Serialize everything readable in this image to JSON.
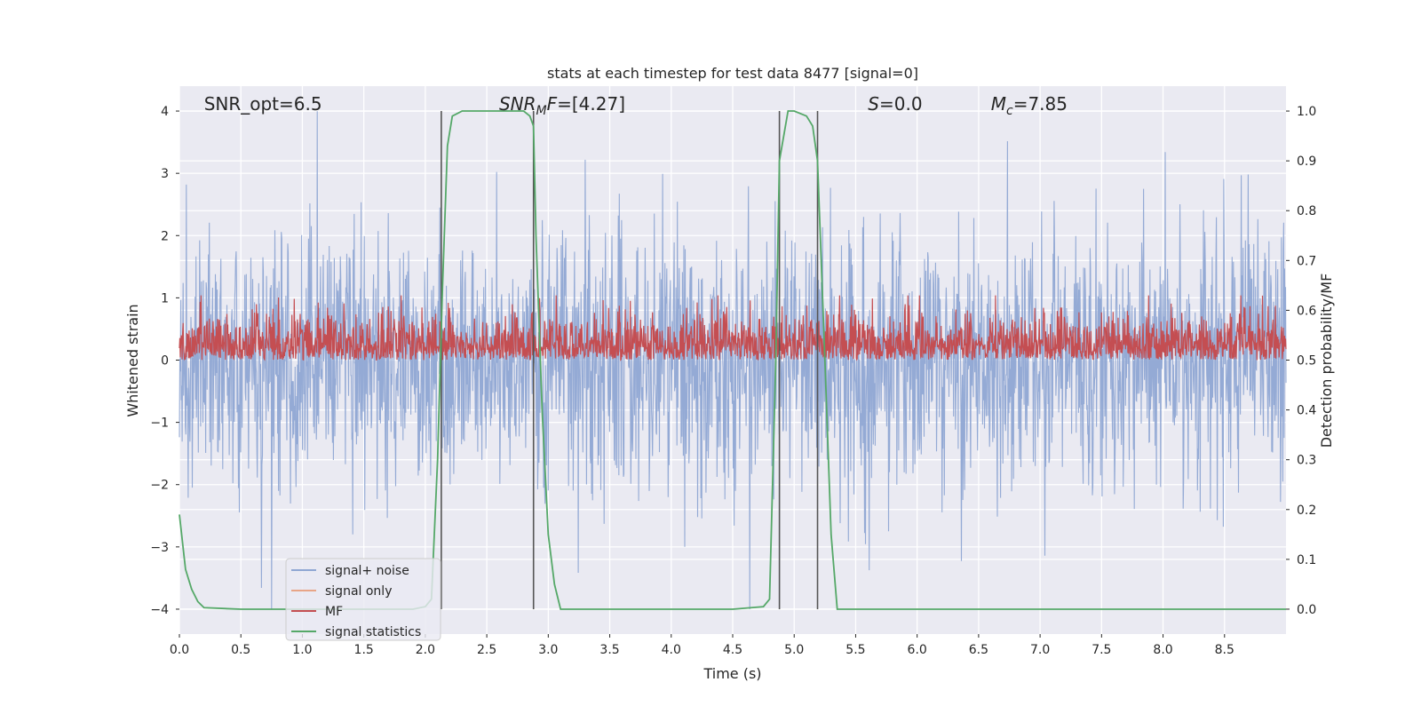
{
  "chart_data": {
    "type": "line",
    "title": "stats at each timestep for test data 8477 [signal=0]",
    "xlabel": "Time (s)",
    "ylabel_left": "Whitened strain",
    "ylabel_right": "Detection probability/MF",
    "xlim": [
      0.0,
      9.0
    ],
    "ylim_left": [
      -4.4,
      4.4
    ],
    "ylim_right": [
      -0.05,
      1.05
    ],
    "x_ticks": [
      "0.0",
      "0.5",
      "1.0",
      "1.5",
      "2.0",
      "2.5",
      "3.0",
      "3.5",
      "4.0",
      "4.5",
      "5.0",
      "5.5",
      "6.0",
      "6.5",
      "7.0",
      "7.5",
      "8.0",
      "8.5"
    ],
    "y_ticks_left": [
      "−4",
      "−3",
      "−2",
      "−1",
      "0",
      "1",
      "2",
      "3",
      "4"
    ],
    "y_ticks_right": [
      "0.0",
      "0.1",
      "0.2",
      "0.3",
      "0.4",
      "0.5",
      "0.6",
      "0.7",
      "0.8",
      "0.9",
      "1.0"
    ],
    "annotations": [
      {
        "text": "SNR_opt=6.5",
        "x": 0.2
      },
      {
        "text": "SNR_MF=[4.27]",
        "x": 2.6
      },
      {
        "text": "S=0.0",
        "x": 5.6
      },
      {
        "text": "M_c=7.85",
        "x": 6.6
      }
    ],
    "vlines": [
      2.13,
      2.88,
      4.88,
      5.19
    ],
    "legend": {
      "placement": "lower-left",
      "entries": [
        {
          "label": "signal+ noise",
          "color": "#8fa7d3"
        },
        {
          "label": "signal only",
          "color": "#e8a587"
        },
        {
          "label": "MF",
          "color": "#c44e52"
        },
        {
          "label": "signal statistics",
          "color": "#55a868"
        }
      ]
    },
    "series": [
      {
        "name": "signal+ noise",
        "axis": "left",
        "color": "#8fa7d3",
        "envelope": {
          "typical_abs": 2.0,
          "max": 4.0,
          "min": -4.0
        }
      },
      {
        "name": "MF",
        "axis": "right",
        "color": "#c44e52",
        "envelope": {
          "min": 0.5,
          "typical_max": 0.58,
          "max": 0.63
        }
      },
      {
        "name": "signal statistics",
        "axis": "right",
        "color": "#55a868",
        "x": [
          0.0,
          0.05,
          0.1,
          0.15,
          0.2,
          0.5,
          1.0,
          1.5,
          1.9,
          2.0,
          2.05,
          2.1,
          2.14,
          2.18,
          2.22,
          2.3,
          2.5,
          2.8,
          2.85,
          2.88,
          2.9,
          2.95,
          3.0,
          3.05,
          3.1,
          3.5,
          4.0,
          4.5,
          4.75,
          4.8,
          4.85,
          4.88,
          4.95,
          5.0,
          5.1,
          5.15,
          5.19,
          5.25,
          5.3,
          5.35,
          6.0,
          7.0,
          8.0,
          9.0
        ],
        "y": [
          0.19,
          0.08,
          0.04,
          0.015,
          0.003,
          0.0,
          0.0,
          0.0,
          0.0,
          0.005,
          0.02,
          0.3,
          0.65,
          0.93,
          0.99,
          1.0,
          1.0,
          1.0,
          0.99,
          0.97,
          0.75,
          0.4,
          0.15,
          0.05,
          0.0,
          0.0,
          0.0,
          0.0,
          0.005,
          0.02,
          0.5,
          0.9,
          1.0,
          1.0,
          0.99,
          0.97,
          0.9,
          0.5,
          0.15,
          0.0,
          0.0,
          0.0,
          0.0,
          0.0
        ]
      }
    ]
  }
}
